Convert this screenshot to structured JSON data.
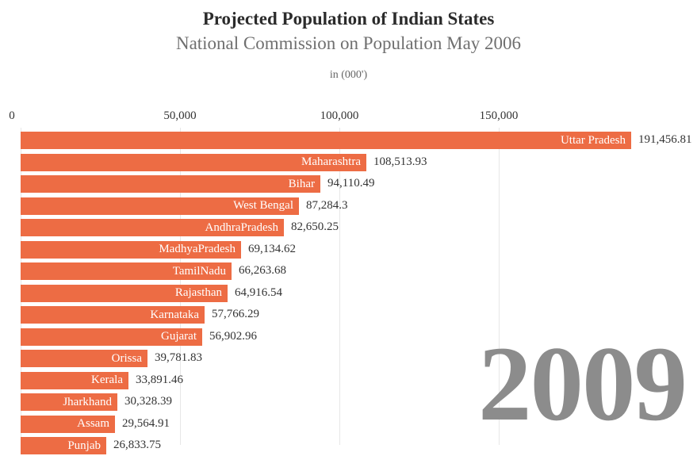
{
  "header": {
    "title": "Projected Population of Indian States",
    "subtitle": "National Commission on Population May 2006",
    "unit_label": "in (000')"
  },
  "year_label": "2009",
  "colors": {
    "bar": "#ED6C44",
    "title_text": "#2B2B2B",
    "subtitle_text": "#6F6F6F",
    "unit_text": "#666666",
    "axis_text": "#333333",
    "value_text": "#333333",
    "bar_label_text": "#FFFFFF",
    "year_text": "#8C8C8C",
    "gridline": "#E7E7E7",
    "background": "#FFFFFF"
  },
  "chart_data": {
    "type": "bar",
    "orientation": "horizontal",
    "title": "Projected Population of Indian States",
    "subtitle": "National Commission on Population May 2006",
    "unit": "in (000')",
    "year": "2009",
    "xlabel": "",
    "ylabel": "",
    "grid": true,
    "legend": "none",
    "xlim": [
      0,
      212000
    ],
    "x_ticks": [
      {
        "value": 0,
        "label": "0",
        "label_x": 15,
        "grid_x": 26
      },
      {
        "value": 50000,
        "label": "50,000",
        "label_x": 227,
        "grid_x": 227
      },
      {
        "value": 100000,
        "label": "100,000",
        "label_x": 428,
        "grid_x": 428
      },
      {
        "value": 150000,
        "label": "150,000",
        "label_x": 629,
        "grid_x": 629
      }
    ],
    "categories": [
      "Uttar Pradesh",
      "Maharashtra",
      "Bihar",
      "West Bengal",
      "AndhraPradesh",
      "MadhyaPradesh",
      "TamilNadu",
      "Rajasthan",
      "Karnataka",
      "Gujarat",
      "Orissa",
      "Kerala",
      "Jharkhand",
      "Assam",
      "Punjab"
    ],
    "values": [
      191456.81,
      108513.93,
      94110.49,
      87284.3,
      82650.25,
      69134.62,
      66263.68,
      64916.54,
      57766.29,
      56902.96,
      39781.83,
      33891.46,
      30328.39,
      29564.91,
      26833.75
    ],
    "value_labels": [
      "191,456.81",
      "108,513.93",
      "94,110.49",
      "87,284.3",
      "82,650.25",
      "69,134.62",
      "66,263.68",
      "64,916.54",
      "57,766.29",
      "56,902.96",
      "39,781.83",
      "33,891.46",
      "30,328.39",
      "29,564.91",
      "26,833.75"
    ]
  }
}
